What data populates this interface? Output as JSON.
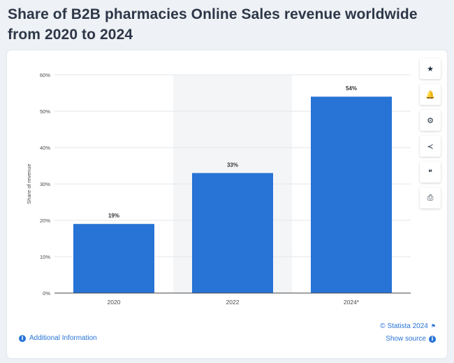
{
  "page": {
    "title": "Share of B2B pharmacies Online Sales revenue worldwide from 2020 to 2024"
  },
  "toolbar": {
    "items": [
      {
        "name": "favorite-star-icon",
        "glyph": "★"
      },
      {
        "name": "notification-bell-icon",
        "glyph": "🔔"
      },
      {
        "name": "settings-gear-icon",
        "glyph": "⚙"
      },
      {
        "name": "share-icon",
        "glyph": "≺"
      },
      {
        "name": "cite-quote-icon",
        "glyph": "❝"
      },
      {
        "name": "print-icon",
        "glyph": "⎙"
      }
    ]
  },
  "footer": {
    "additional_info": "Additional Information",
    "copyright": "© Statista 2024",
    "show_source": "Show source"
  },
  "colors": {
    "bar": "#2773d6",
    "highlight_band": "#f4f5f7",
    "link": "#2773d6"
  },
  "chart_data": {
    "type": "bar",
    "categories": [
      "2020",
      "2022",
      "2024*"
    ],
    "values": [
      19,
      33,
      54
    ],
    "value_labels": [
      "19%",
      "33%",
      "54%"
    ],
    "ylabel": "Share of revenue",
    "ylim": [
      0,
      60
    ],
    "yticks": [
      "0%",
      "10%",
      "20%",
      "30%",
      "40%",
      "50%",
      "60%"
    ],
    "highlighted_category": "2022",
    "grid": true
  }
}
